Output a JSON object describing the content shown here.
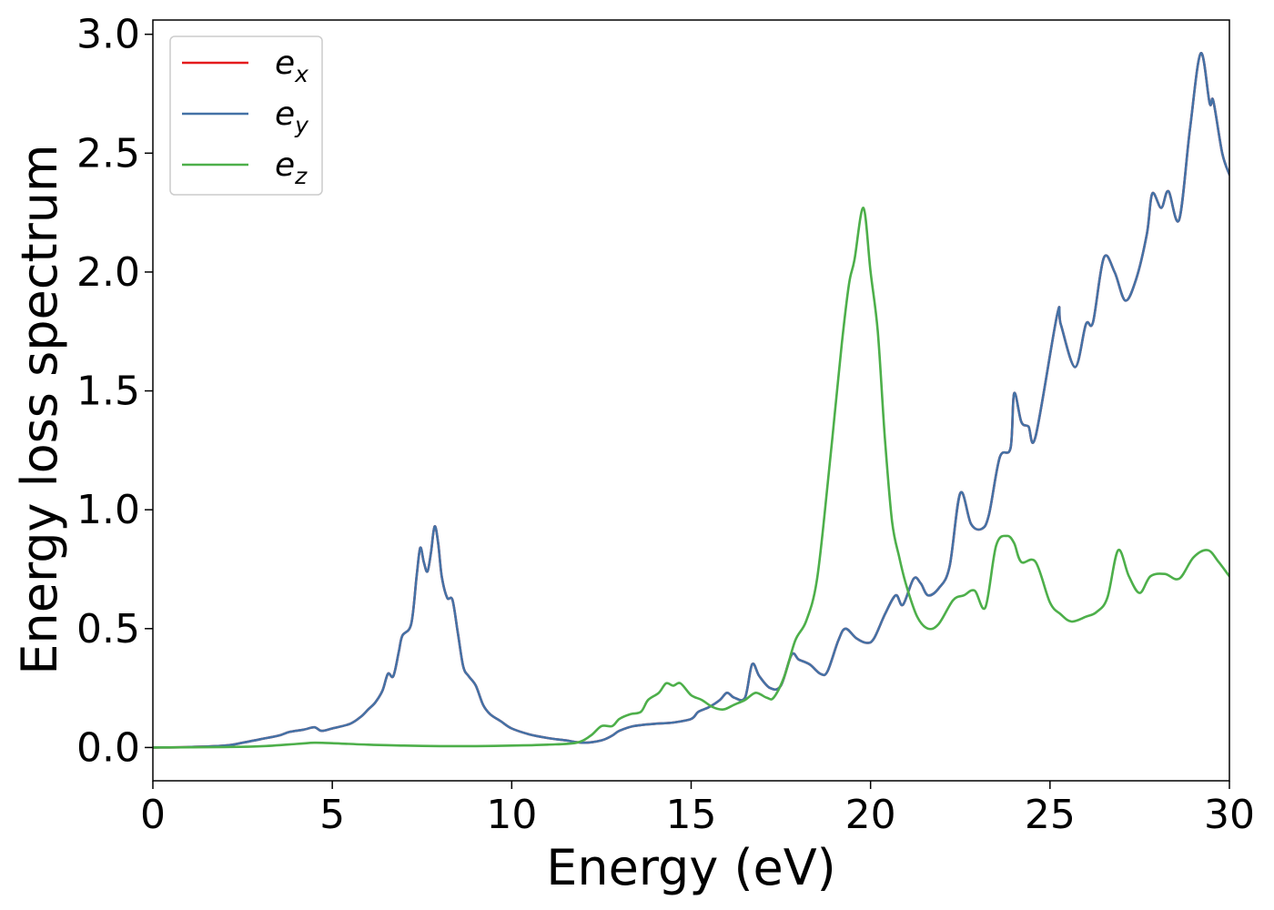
{
  "chart_data": {
    "type": "line",
    "title": "",
    "xlabel": "Energy (eV)",
    "ylabel": "Energy loss spectrum",
    "xlim": [
      0,
      30
    ],
    "ylim": [
      -0.14,
      3.06
    ],
    "xticks": [
      0,
      5,
      10,
      15,
      20,
      25,
      30
    ],
    "xtick_labels": [
      "0",
      "5",
      "10",
      "15",
      "20",
      "25",
      "30"
    ],
    "yticks": [
      0.0,
      0.5,
      1.0,
      1.5,
      2.0,
      2.5,
      3.0
    ],
    "ytick_labels": [
      "0.0",
      "0.5",
      "1.0",
      "1.5",
      "2.0",
      "2.5",
      "3.0"
    ],
    "grid": false,
    "legend_position": "top-left",
    "series": [
      {
        "name": "e_x",
        "legend_base": "e",
        "legend_sub": "x",
        "color": "#e41a1c",
        "points": [
          [
            0,
            0.0
          ],
          [
            1,
            0.002
          ],
          [
            2,
            0.008
          ],
          [
            2.5,
            0.02
          ],
          [
            3,
            0.035
          ],
          [
            3.5,
            0.05
          ],
          [
            3.8,
            0.065
          ],
          [
            4.2,
            0.075
          ],
          [
            4.5,
            0.085
          ],
          [
            4.7,
            0.07
          ],
          [
            5,
            0.08
          ],
          [
            5.5,
            0.1
          ],
          [
            5.8,
            0.13
          ],
          [
            6,
            0.16
          ],
          [
            6.2,
            0.19
          ],
          [
            6.4,
            0.24
          ],
          [
            6.55,
            0.31
          ],
          [
            6.7,
            0.3
          ],
          [
            6.85,
            0.4
          ],
          [
            6.95,
            0.47
          ],
          [
            7.2,
            0.52
          ],
          [
            7.35,
            0.72
          ],
          [
            7.45,
            0.84
          ],
          [
            7.55,
            0.78
          ],
          [
            7.65,
            0.74
          ],
          [
            7.75,
            0.82
          ],
          [
            7.85,
            0.93
          ],
          [
            7.95,
            0.86
          ],
          [
            8.05,
            0.72
          ],
          [
            8.2,
            0.63
          ],
          [
            8.35,
            0.62
          ],
          [
            8.5,
            0.48
          ],
          [
            8.65,
            0.34
          ],
          [
            8.8,
            0.3
          ],
          [
            9,
            0.26
          ],
          [
            9.2,
            0.18
          ],
          [
            9.4,
            0.14
          ],
          [
            9.7,
            0.11
          ],
          [
            10,
            0.08
          ],
          [
            10.5,
            0.055
          ],
          [
            11,
            0.04
          ],
          [
            11.5,
            0.03
          ],
          [
            12,
            0.02
          ],
          [
            12.5,
            0.03
          ],
          [
            12.8,
            0.05
          ],
          [
            13,
            0.07
          ],
          [
            13.4,
            0.09
          ],
          [
            14,
            0.1
          ],
          [
            14.5,
            0.105
          ],
          [
            15,
            0.12
          ],
          [
            15.2,
            0.15
          ],
          [
            15.5,
            0.17
          ],
          [
            15.8,
            0.2
          ],
          [
            16,
            0.23
          ],
          [
            16.2,
            0.21
          ],
          [
            16.5,
            0.21
          ],
          [
            16.7,
            0.35
          ],
          [
            16.9,
            0.3
          ],
          [
            17.2,
            0.25
          ],
          [
            17.5,
            0.26
          ],
          [
            17.8,
            0.39
          ],
          [
            18,
            0.37
          ],
          [
            18.3,
            0.35
          ],
          [
            18.6,
            0.31
          ],
          [
            18.8,
            0.32
          ],
          [
            19.1,
            0.45
          ],
          [
            19.3,
            0.5
          ],
          [
            19.6,
            0.46
          ],
          [
            19.9,
            0.44
          ],
          [
            20.1,
            0.46
          ],
          [
            20.4,
            0.56
          ],
          [
            20.7,
            0.64
          ],
          [
            20.9,
            0.6
          ],
          [
            21.2,
            0.71
          ],
          [
            21.4,
            0.69
          ],
          [
            21.6,
            0.64
          ],
          [
            21.9,
            0.67
          ],
          [
            22.2,
            0.76
          ],
          [
            22.5,
            1.07
          ],
          [
            22.8,
            0.94
          ],
          [
            23.1,
            0.92
          ],
          [
            23.3,
            0.98
          ],
          [
            23.6,
            1.22
          ],
          [
            23.9,
            1.26
          ],
          [
            24,
            1.49
          ],
          [
            24.2,
            1.37
          ],
          [
            24.4,
            1.35
          ],
          [
            24.6,
            1.31
          ],
          [
            25.2,
            1.82
          ],
          [
            25.3,
            1.78
          ],
          [
            25.7,
            1.6
          ],
          [
            26,
            1.78
          ],
          [
            26.2,
            1.79
          ],
          [
            26.5,
            2.06
          ],
          [
            26.8,
            2.0
          ],
          [
            27.1,
            1.88
          ],
          [
            27.4,
            1.97
          ],
          [
            27.7,
            2.16
          ],
          [
            27.85,
            2.33
          ],
          [
            28.1,
            2.27
          ],
          [
            28.3,
            2.34
          ],
          [
            28.6,
            2.22
          ],
          [
            28.9,
            2.6
          ],
          [
            29.2,
            2.92
          ],
          [
            29.45,
            2.71
          ],
          [
            29.55,
            2.72
          ],
          [
            29.8,
            2.5
          ],
          [
            30,
            2.41
          ]
        ]
      },
      {
        "name": "e_y",
        "legend_base": "e",
        "legend_sub": "y",
        "color": "#4472a6",
        "points": [
          [
            0,
            0.0
          ],
          [
            1,
            0.002
          ],
          [
            2,
            0.008
          ],
          [
            2.5,
            0.02
          ],
          [
            3,
            0.035
          ],
          [
            3.5,
            0.05
          ],
          [
            3.8,
            0.065
          ],
          [
            4.2,
            0.075
          ],
          [
            4.5,
            0.085
          ],
          [
            4.7,
            0.07
          ],
          [
            5,
            0.08
          ],
          [
            5.5,
            0.1
          ],
          [
            5.8,
            0.13
          ],
          [
            6,
            0.16
          ],
          [
            6.2,
            0.19
          ],
          [
            6.4,
            0.24
          ],
          [
            6.55,
            0.31
          ],
          [
            6.7,
            0.3
          ],
          [
            6.85,
            0.4
          ],
          [
            6.95,
            0.47
          ],
          [
            7.2,
            0.52
          ],
          [
            7.35,
            0.72
          ],
          [
            7.45,
            0.84
          ],
          [
            7.55,
            0.78
          ],
          [
            7.65,
            0.74
          ],
          [
            7.75,
            0.82
          ],
          [
            7.85,
            0.93
          ],
          [
            7.95,
            0.86
          ],
          [
            8.05,
            0.72
          ],
          [
            8.2,
            0.63
          ],
          [
            8.35,
            0.62
          ],
          [
            8.5,
            0.48
          ],
          [
            8.65,
            0.34
          ],
          [
            8.8,
            0.3
          ],
          [
            9,
            0.26
          ],
          [
            9.2,
            0.18
          ],
          [
            9.4,
            0.14
          ],
          [
            9.7,
            0.11
          ],
          [
            10,
            0.08
          ],
          [
            10.5,
            0.055
          ],
          [
            11,
            0.04
          ],
          [
            11.5,
            0.03
          ],
          [
            12,
            0.02
          ],
          [
            12.5,
            0.03
          ],
          [
            12.8,
            0.05
          ],
          [
            13,
            0.07
          ],
          [
            13.4,
            0.09
          ],
          [
            14,
            0.1
          ],
          [
            14.5,
            0.105
          ],
          [
            15,
            0.12
          ],
          [
            15.2,
            0.15
          ],
          [
            15.5,
            0.17
          ],
          [
            15.8,
            0.2
          ],
          [
            16,
            0.23
          ],
          [
            16.2,
            0.21
          ],
          [
            16.5,
            0.21
          ],
          [
            16.7,
            0.35
          ],
          [
            16.9,
            0.3
          ],
          [
            17.2,
            0.25
          ],
          [
            17.5,
            0.26
          ],
          [
            17.8,
            0.39
          ],
          [
            18,
            0.37
          ],
          [
            18.3,
            0.35
          ],
          [
            18.6,
            0.31
          ],
          [
            18.8,
            0.32
          ],
          [
            19.1,
            0.45
          ],
          [
            19.3,
            0.5
          ],
          [
            19.6,
            0.46
          ],
          [
            19.9,
            0.44
          ],
          [
            20.1,
            0.46
          ],
          [
            20.4,
            0.56
          ],
          [
            20.7,
            0.64
          ],
          [
            20.9,
            0.6
          ],
          [
            21.2,
            0.71
          ],
          [
            21.4,
            0.69
          ],
          [
            21.6,
            0.64
          ],
          [
            21.9,
            0.67
          ],
          [
            22.2,
            0.76
          ],
          [
            22.5,
            1.07
          ],
          [
            22.8,
            0.94
          ],
          [
            23.1,
            0.92
          ],
          [
            23.3,
            0.98
          ],
          [
            23.6,
            1.22
          ],
          [
            23.9,
            1.26
          ],
          [
            24,
            1.49
          ],
          [
            24.2,
            1.37
          ],
          [
            24.4,
            1.35
          ],
          [
            24.6,
            1.31
          ],
          [
            25.2,
            1.82
          ],
          [
            25.3,
            1.78
          ],
          [
            25.7,
            1.6
          ],
          [
            26,
            1.78
          ],
          [
            26.2,
            1.79
          ],
          [
            26.5,
            2.06
          ],
          [
            26.8,
            2.0
          ],
          [
            27.1,
            1.88
          ],
          [
            27.4,
            1.97
          ],
          [
            27.7,
            2.16
          ],
          [
            27.85,
            2.33
          ],
          [
            28.1,
            2.27
          ],
          [
            28.3,
            2.34
          ],
          [
            28.6,
            2.22
          ],
          [
            28.9,
            2.6
          ],
          [
            29.2,
            2.92
          ],
          [
            29.45,
            2.71
          ],
          [
            29.55,
            2.72
          ],
          [
            29.8,
            2.5
          ],
          [
            30,
            2.41
          ]
        ]
      },
      {
        "name": "e_z",
        "legend_base": "e",
        "legend_sub": "z",
        "color": "#4daf4a",
        "points": [
          [
            0,
            0.0
          ],
          [
            2,
            0.002
          ],
          [
            3,
            0.005
          ],
          [
            4,
            0.015
          ],
          [
            4.5,
            0.02
          ],
          [
            5,
            0.018
          ],
          [
            6,
            0.012
          ],
          [
            7,
            0.008
          ],
          [
            8,
            0.006
          ],
          [
            9,
            0.006
          ],
          [
            10,
            0.008
          ],
          [
            11,
            0.012
          ],
          [
            11.8,
            0.02
          ],
          [
            12.2,
            0.05
          ],
          [
            12.5,
            0.09
          ],
          [
            12.8,
            0.09
          ],
          [
            13,
            0.12
          ],
          [
            13.3,
            0.14
          ],
          [
            13.6,
            0.15
          ],
          [
            13.8,
            0.2
          ],
          [
            14.1,
            0.23
          ],
          [
            14.3,
            0.27
          ],
          [
            14.5,
            0.26
          ],
          [
            14.7,
            0.27
          ],
          [
            15,
            0.22
          ],
          [
            15.3,
            0.2
          ],
          [
            15.6,
            0.17
          ],
          [
            15.9,
            0.16
          ],
          [
            16.2,
            0.18
          ],
          [
            16.5,
            0.2
          ],
          [
            16.8,
            0.23
          ],
          [
            17.1,
            0.21
          ],
          [
            17.3,
            0.21
          ],
          [
            17.6,
            0.3
          ],
          [
            17.9,
            0.45
          ],
          [
            18.2,
            0.53
          ],
          [
            18.5,
            0.7
          ],
          [
            18.8,
            1.1
          ],
          [
            19,
            1.4
          ],
          [
            19.2,
            1.7
          ],
          [
            19.4,
            1.95
          ],
          [
            19.55,
            2.05
          ],
          [
            19.8,
            2.27
          ],
          [
            20,
            2.0
          ],
          [
            20.2,
            1.75
          ],
          [
            20.4,
            1.3
          ],
          [
            20.6,
            0.95
          ],
          [
            20.8,
            0.8
          ],
          [
            21,
            0.68
          ],
          [
            21.3,
            0.55
          ],
          [
            21.6,
            0.5
          ],
          [
            21.9,
            0.52
          ],
          [
            22.3,
            0.62
          ],
          [
            22.6,
            0.64
          ],
          [
            22.9,
            0.66
          ],
          [
            23.2,
            0.59
          ],
          [
            23.5,
            0.85
          ],
          [
            23.8,
            0.89
          ],
          [
            24,
            0.86
          ],
          [
            24.2,
            0.78
          ],
          [
            24.6,
            0.78
          ],
          [
            25,
            0.61
          ],
          [
            25.3,
            0.56
          ],
          [
            25.6,
            0.53
          ],
          [
            26,
            0.55
          ],
          [
            26.3,
            0.57
          ],
          [
            26.6,
            0.63
          ],
          [
            26.9,
            0.83
          ],
          [
            27.2,
            0.72
          ],
          [
            27.5,
            0.65
          ],
          [
            27.8,
            0.72
          ],
          [
            28.2,
            0.73
          ],
          [
            28.6,
            0.71
          ],
          [
            29,
            0.8
          ],
          [
            29.4,
            0.83
          ],
          [
            29.7,
            0.78
          ],
          [
            30,
            0.72
          ]
        ]
      }
    ]
  }
}
